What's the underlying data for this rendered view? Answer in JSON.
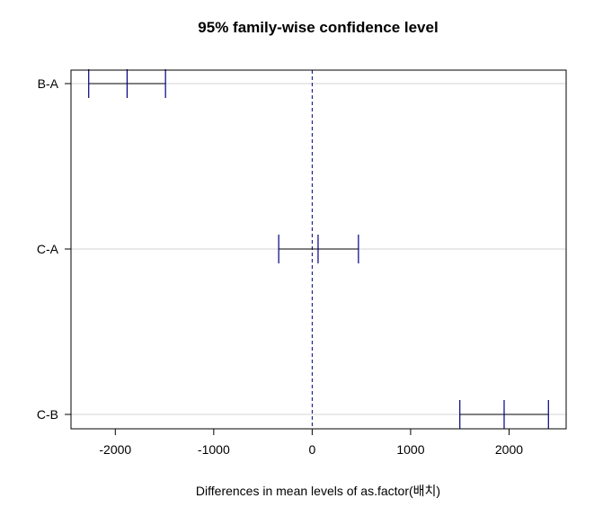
{
  "chart_data": {
    "type": "errorbar",
    "title": "95% family-wise confidence level",
    "xlabel": "Differences in mean levels of as.factor(배치)",
    "ylabel": "",
    "xlim": [
      -2450,
      2580
    ],
    "x_ticks": [
      -2000,
      -1000,
      0,
      1000,
      2000
    ],
    "x_tick_labels": [
      "-2000",
      "-1000",
      "0",
      "1000",
      "2000"
    ],
    "reference_line": 0,
    "grid": true,
    "categories": [
      "B-A",
      "C-A",
      "C-B"
    ],
    "intervals": [
      {
        "label": "B-A",
        "lower": -2270,
        "estimate": -1880,
        "upper": -1490
      },
      {
        "label": "C-A",
        "lower": -340,
        "estimate": 60,
        "upper": 470
      },
      {
        "label": "C-B",
        "lower": 1500,
        "estimate": 1950,
        "upper": 2400
      }
    ],
    "colors": {
      "interval": "#000080",
      "estimate_tick": "#000080",
      "whisker": "#000080",
      "center_line": "#000000",
      "reference_line": "#000080",
      "grid": "#d3d3d3",
      "frame": "#000000"
    }
  }
}
